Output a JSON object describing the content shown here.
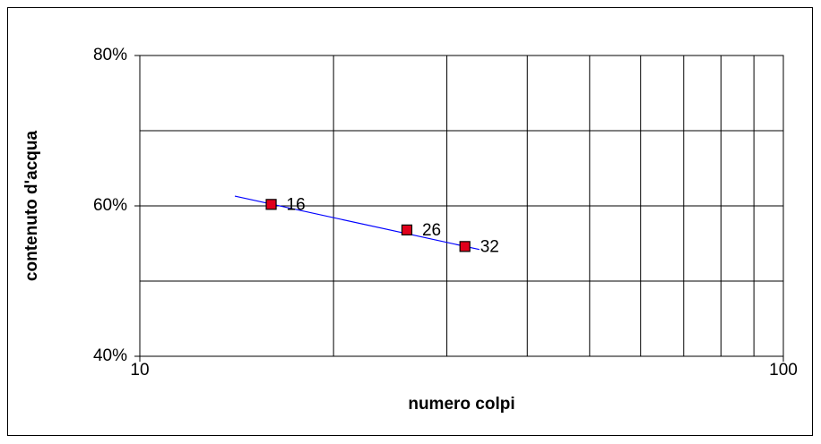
{
  "chart_data": {
    "type": "scatter",
    "x_label": "numero colpi",
    "y_label": "contenuto d'acqua",
    "x": [
      16,
      26,
      32
    ],
    "values": [
      60.2,
      56.8,
      54.6
    ],
    "color": "#e0001b",
    "trendline": {
      "x": [
        14.05,
        33.7
      ],
      "values": [
        61.3,
        54.2
      ],
      "color": "#0000ff"
    },
    "xlog": true,
    "xlim": [
      10,
      100
    ],
    "xticks": [
      10,
      100
    ],
    "xgrid": [
      20,
      30,
      40,
      50,
      60,
      70,
      80,
      90
    ],
    "ylim": [
      40,
      80
    ],
    "yticks": [
      {
        "value": 40,
        "label": "40%"
      },
      {
        "value": 60,
        "label": "60%"
      },
      {
        "value": 80,
        "label": "80%"
      }
    ],
    "ygrid": [
      50,
      70
    ],
    "grid": true
  }
}
